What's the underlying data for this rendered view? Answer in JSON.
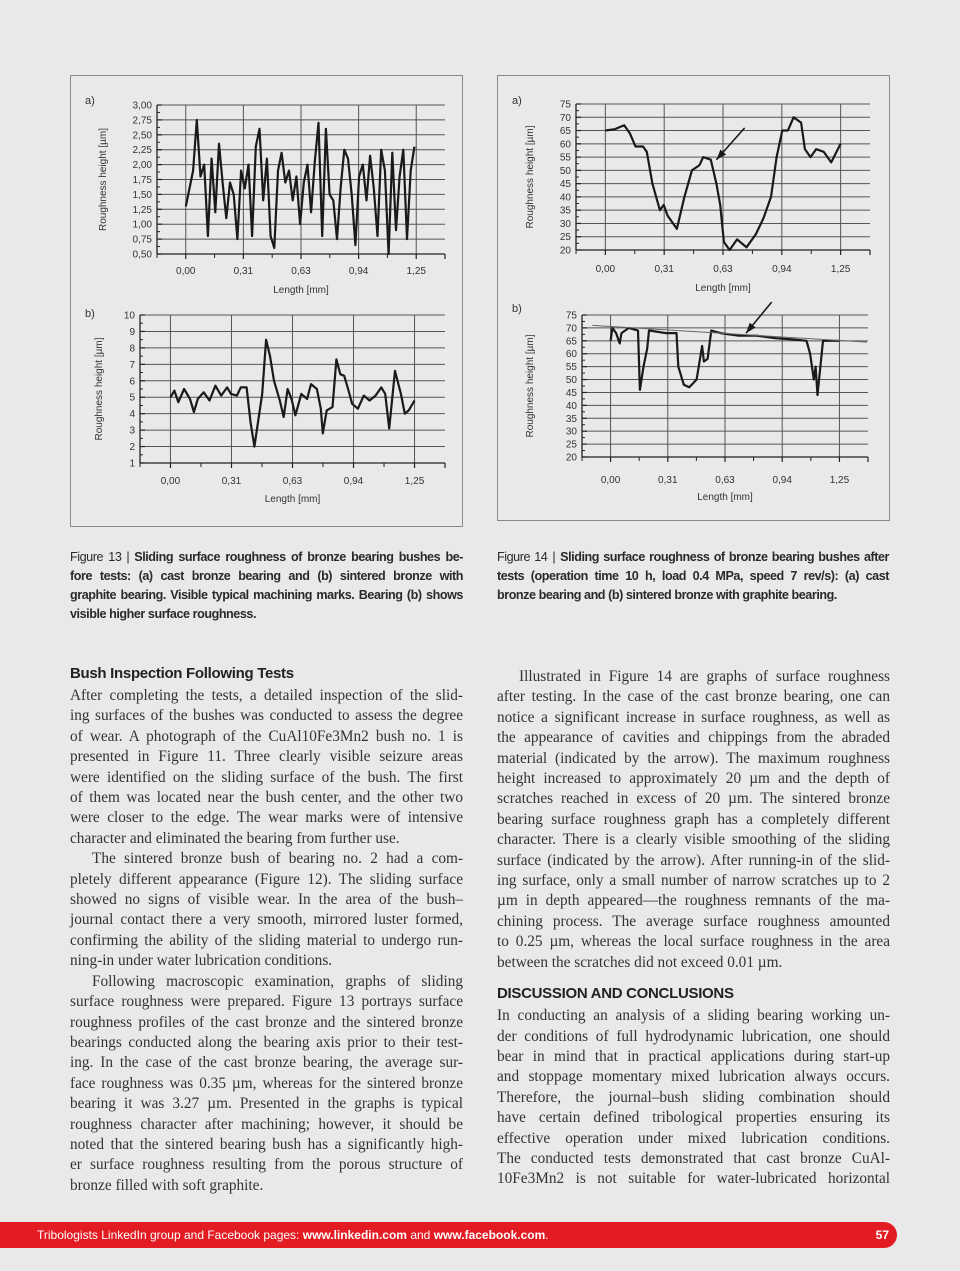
{
  "figures": [
    {
      "caption_label": "Figure 13",
      "caption_separator": "|",
      "caption_lines": [
        "Sliding surface roughness of bronze bearing bushes be-",
        "fore tests: (a) cast bronze bearing and (b) sintered bronze with",
        "graphite bearing. Visible typical machining marks. Bearing (b) shows",
        "visible higher surface roughness."
      ]
    },
    {
      "caption_label": "Figure 14",
      "caption_separator": "|",
      "caption_lines": [
        "Sliding surface roughness of bronze bearing bushes after",
        "tests (operation time 10 h, load 0.4 MPa, speed 7 rev/s): (a) cast",
        "bronze bearing and (b) sintered bronze with graphite bearing."
      ]
    }
  ],
  "chart_data": [
    {
      "figure": "Figure 13",
      "panel": "a)",
      "type": "line",
      "xlabel": "Length [mm]",
      "ylabel": "Roughness height [µm]",
      "xlim": [
        -0.156,
        1.406
      ],
      "ylim": [
        0.5,
        3.0
      ],
      "grid": true,
      "x_ticks": [
        0,
        0.3125,
        0.625,
        0.9375,
        1.25
      ],
      "x_tick_labels": [
        "0,00",
        "0,31",
        "0,63",
        "0,94",
        "1,25"
      ],
      "y_ticks": [
        0.5,
        0.75,
        1.0,
        1.25,
        1.5,
        1.75,
        2.0,
        2.25,
        2.5,
        2.75,
        3.0
      ],
      "y_tick_labels": [
        "0,50",
        "0,75",
        "1,00",
        "1,25",
        "1,50",
        "1,75",
        "2,00",
        "2,25",
        "2,50",
        "2,75",
        "3,00"
      ],
      "series": [
        {
          "x": [
            0,
            0.02,
            0.04,
            0.06,
            0.08,
            0.1,
            0.12,
            0.14,
            0.16,
            0.18,
            0.2,
            0.22,
            0.24,
            0.26,
            0.28,
            0.3,
            0.32,
            0.34,
            0.36,
            0.38,
            0.4,
            0.42,
            0.44,
            0.46,
            0.48,
            0.5,
            0.52,
            0.54,
            0.56,
            0.58,
            0.6,
            0.62,
            0.64,
            0.66,
            0.68,
            0.7,
            0.72,
            0.74,
            0.76,
            0.78,
            0.8,
            0.82,
            0.84,
            0.86,
            0.88,
            0.9,
            0.92,
            0.94,
            0.96,
            0.98,
            1.0,
            1.02,
            1.04,
            1.06,
            1.08,
            1.1,
            1.12,
            1.14,
            1.16,
            1.18,
            1.2,
            1.22,
            1.24
          ],
          "y": [
            1.3,
            1.6,
            1.9,
            2.75,
            1.8,
            2.0,
            0.8,
            2.1,
            1.2,
            2.35,
            1.7,
            1.1,
            1.7,
            1.5,
            0.75,
            1.9,
            1.6,
            2.0,
            0.8,
            2.3,
            2.6,
            1.4,
            2.1,
            0.8,
            0.6,
            1.9,
            2.2,
            1.7,
            1.9,
            1.4,
            1.8,
            1.0,
            1.7,
            2.0,
            1.2,
            2.05,
            2.7,
            0.8,
            2.6,
            1.5,
            1.4,
            0.75,
            1.6,
            2.25,
            2.1,
            1.5,
            0.65,
            1.8,
            2.0,
            1.4,
            2.15,
            1.6,
            0.8,
            2.25,
            1.9,
            0.5,
            2.2,
            0.9,
            1.8,
            2.25,
            0.75,
            1.9,
            2.3
          ]
        }
      ]
    },
    {
      "figure": "Figure 13",
      "panel": "b)",
      "type": "line",
      "xlabel": "Length [mm]",
      "ylabel": "Roughness height [µm]",
      "xlim": [
        -0.156,
        1.406
      ],
      "ylim": [
        1,
        10
      ],
      "grid": true,
      "x_ticks": [
        0,
        0.3125,
        0.625,
        0.9375,
        1.25
      ],
      "x_tick_labels": [
        "0,00",
        "0,31",
        "0,63",
        "0,94",
        "1,25"
      ],
      "y_ticks": [
        1,
        2,
        3,
        4,
        5,
        6,
        7,
        8,
        9,
        10
      ],
      "y_tick_labels": [
        "1",
        "2",
        "3",
        "4",
        "5",
        "6",
        "7",
        "8",
        "9",
        "10"
      ],
      "series": [
        {
          "x": [
            0,
            0.02,
            0.04,
            0.07,
            0.1,
            0.12,
            0.14,
            0.17,
            0.2,
            0.23,
            0.26,
            0.29,
            0.31,
            0.34,
            0.36,
            0.39,
            0.41,
            0.43,
            0.47,
            0.49,
            0.51,
            0.53,
            0.56,
            0.58,
            0.6,
            0.62,
            0.64,
            0.67,
            0.7,
            0.72,
            0.75,
            0.77,
            0.78,
            0.8,
            0.83,
            0.85,
            0.87,
            0.89,
            0.91,
            0.93,
            0.96,
            0.99,
            1.02,
            1.05,
            1.08,
            1.1,
            1.12,
            1.15,
            1.18,
            1.2,
            1.22,
            1.25
          ],
          "y": [
            5.0,
            5.4,
            4.7,
            5.5,
            4.9,
            4.1,
            4.9,
            5.3,
            4.8,
            5.7,
            5.1,
            5.6,
            5.2,
            5.1,
            5.6,
            5.6,
            3.5,
            2.0,
            5.2,
            8.5,
            7.5,
            6.0,
            4.8,
            3.8,
            5.5,
            4.9,
            3.9,
            5.2,
            4.9,
            5.8,
            5.5,
            4.3,
            2.8,
            4.2,
            4.4,
            7.3,
            6.4,
            6.3,
            5.5,
            4.6,
            4.3,
            5.1,
            4.8,
            5.1,
            5.6,
            5.2,
            3.1,
            6.6,
            5.2,
            4.0,
            4.2,
            4.8
          ]
        }
      ]
    },
    {
      "figure": "Figure 14",
      "panel": "a)",
      "type": "line",
      "xlabel": "Length [mm]",
      "ylabel": "Roughness height [µm]",
      "xlim": [
        -0.156,
        1.406
      ],
      "ylim": [
        20,
        75
      ],
      "grid": true,
      "x_ticks": [
        0,
        0.3125,
        0.625,
        0.9375,
        1.25
      ],
      "x_tick_labels": [
        "0,00",
        "0,31",
        "0,63",
        "0,94",
        "1,25"
      ],
      "y_ticks": [
        20,
        25,
        30,
        35,
        40,
        45,
        50,
        55,
        60,
        65,
        70,
        75
      ],
      "y_tick_labels": [
        "20",
        "25",
        "30",
        "35",
        "40",
        "45",
        "50",
        "55",
        "60",
        "65",
        "70",
        "75"
      ],
      "series": [
        {
          "x": [
            0,
            0.05,
            0.1,
            0.13,
            0.16,
            0.2,
            0.22,
            0.25,
            0.29,
            0.31,
            0.33,
            0.36,
            0.38,
            0.42,
            0.46,
            0.5,
            0.52,
            0.56,
            0.59,
            0.61,
            0.63,
            0.66,
            0.7,
            0.75,
            0.8,
            0.84,
            0.88,
            0.91,
            0.94,
            0.97,
            1.0,
            1.04,
            1.06,
            1.09,
            1.12,
            1.16,
            1.2,
            1.25
          ],
          "y": [
            65,
            65.5,
            67,
            64,
            59,
            59,
            57,
            45,
            35,
            37,
            33,
            30,
            28,
            40,
            50,
            52,
            55,
            54,
            45,
            37,
            23,
            20,
            24,
            21,
            26,
            32,
            40,
            55,
            65,
            65,
            70,
            68,
            58,
            55,
            58,
            57,
            53,
            60
          ]
        }
      ],
      "annotations": [
        {
          "type": "arrow",
          "from": [
            0.74,
            66
          ],
          "to": [
            0.59,
            54
          ]
        }
      ]
    },
    {
      "figure": "Figure 14",
      "panel": "b)",
      "type": "line",
      "xlabel": "Length [mm]",
      "ylabel": "Roughness height [µm]",
      "xlim": [
        -0.156,
        1.406
      ],
      "ylim": [
        20,
        75
      ],
      "grid": true,
      "x_ticks": [
        0,
        0.3125,
        0.625,
        0.9375,
        1.25
      ],
      "x_tick_labels": [
        "0,00",
        "0,31",
        "0,63",
        "0,94",
        "1,25"
      ],
      "y_ticks": [
        20,
        25,
        30,
        35,
        40,
        45,
        50,
        55,
        60,
        65,
        70,
        75
      ],
      "y_tick_labels": [
        "20",
        "25",
        "30",
        "35",
        "40",
        "45",
        "50",
        "55",
        "60",
        "65",
        "70",
        "75"
      ],
      "series": [
        {
          "x": [
            0,
            0.01,
            0.03,
            0.05,
            0.06,
            0.1,
            0.15,
            0.16,
            0.18,
            0.2,
            0.21,
            0.3,
            0.36,
            0.37,
            0.4,
            0.43,
            0.47,
            0.5,
            0.51,
            0.53,
            0.55,
            0.6,
            0.7,
            0.8,
            0.9,
            1.0,
            1.07,
            1.09,
            1.11,
            1.12,
            1.13,
            1.16,
            1.2,
            1.25
          ],
          "y": [
            65,
            70,
            68,
            64,
            68,
            70,
            69,
            46,
            55,
            62,
            69,
            68,
            68,
            55,
            48,
            47,
            50,
            63,
            57,
            58,
            69,
            68,
            67,
            67,
            66,
            65.5,
            65,
            60,
            50,
            55,
            44,
            65,
            65,
            65
          ]
        }
      ],
      "annotations": [
        {
          "type": "trend-line",
          "from": [
            -0.1,
            71
          ],
          "to": [
            1.4,
            64.5
          ]
        },
        {
          "type": "arrow",
          "from": [
            0.88,
            80
          ],
          "to": [
            0.74,
            68
          ]
        }
      ]
    }
  ],
  "left_column": {
    "heading": "Bush Inspection Following Tests",
    "paragraphs": [
      {
        "indent": false,
        "lines": [
          "After completing the tests, a detailed inspection of the slid-",
          "ing surfaces of the bushes was conducted to assess the degree",
          "of wear. A photograph of the CuAl10Fe3Mn2 bush no. 1 is",
          "presented in Figure 11. Three clearly visible seizure areas",
          "were identified on the sliding surface of the bush. The first",
          "of them was located near the bush center, and the other two",
          "were closer to the edge. The wear marks were of intensive",
          "character and eliminated the bearing from further use."
        ]
      },
      {
        "indent": true,
        "lines": [
          "The sintered bronze bush of bearing no. 2 had a com-",
          "pletely different appearance (Figure 12). The sliding surface",
          "showed no signs of visible wear. In the area of the bush–",
          "journal contact there a very smooth, mirrored luster formed,",
          "confirming the ability of the sliding material to undergo run-",
          "ning-in under water lubrication conditions."
        ]
      },
      {
        "indent": true,
        "lines": [
          "Following macroscopic examination, graphs of sliding",
          "surface roughness were prepared. Figure 13 portrays surface",
          "roughness profiles of the cast bronze and the sintered bronze",
          "bearings conducted along the bearing axis prior to their test-",
          "ing. In the case of the cast bronze bearing, the average sur-",
          "face roughness was 0.35 µm, whereas for the sintered bronze",
          "bearing it was 3.27 µm. Presented in the graphs is typical",
          "roughness character after machining; however, it should be",
          "noted that the sintered bearing bush has a significantly high-",
          "er surface roughness resulting from the porous structure of",
          "bronze filled with soft graphite."
        ]
      }
    ]
  },
  "right_column": {
    "paragraphs": [
      {
        "indent": true,
        "lines": [
          "Illustrated in Figure 14 are graphs of surface roughness",
          "after testing. In the case of the cast bronze bearing, one can",
          "notice a significant increase in surface roughness, as well as",
          "the appearance of cavities and chippings from the abraded",
          "material (indicated by the arrow). The maximum roughness",
          "height increased to approximately 20 µm and the depth of",
          "scratches reached in excess of 20 µm. The sintered bronze",
          "bearing surface roughness graph has a completely different",
          "character. There is a clearly visible smoothing of the sliding",
          "surface (indicated by the arrow). After running-in of the slid-",
          "ing surface, only a small number of narrow scratches up to 2",
          "µm in depth appeared—the roughness remnants of the ma-",
          "chining process. The average surface roughness amounted",
          "to 0.25 µm, whereas the local surface roughness in the area",
          "between the scratches did not exceed 0.01 µm."
        ]
      }
    ],
    "heading": "DISCUSSION AND CONCLUSIONS",
    "paragraphs2": [
      {
        "indent": false,
        "last_open": true,
        "lines": [
          "In conducting an analysis of a sliding bearing working un-",
          "der conditions of full hydrodynamic lubrication, one should",
          "bear in mind that in practical applications during start-up",
          "and stoppage momentary mixed lubrication always occurs.",
          "Therefore, the journal–bush sliding combination should",
          "have certain defined tribological properties ensuring its",
          "effective operation under mixed lubrication conditions.",
          "The conducted tests demonstrated that cast bronze CuAl-",
          "10Fe3Mn2 is not suitable for water-lubricated horizontal"
        ]
      }
    ]
  },
  "footer": {
    "text": "Tribologists LinkedIn group and Facebook pages: ",
    "link1": "www.linkedin.com",
    "and": " and ",
    "link2": "www.facebook.com",
    "end": ".",
    "page_number": "57",
    "color": "#e31b23"
  }
}
